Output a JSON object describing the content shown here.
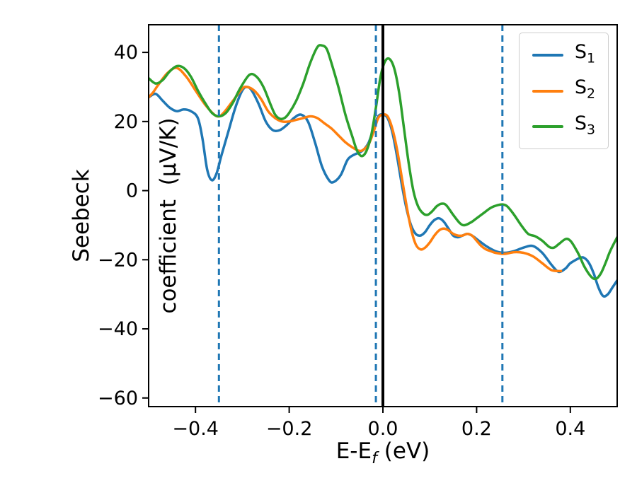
{
  "chart_data": {
    "type": "line",
    "title": "",
    "xlabel_base": "E-E",
    "xlabel_sub": "f",
    "xlabel_unit": " (eV)",
    "ylabel_line1": "Seebeck",
    "ylabel_line2": "coefficient  (μV/K)",
    "xlim": [
      -0.5,
      0.5
    ],
    "ylim": [
      -62.5,
      48
    ],
    "x_ticks": [
      -0.4,
      -0.2,
      0.0,
      0.2,
      0.4
    ],
    "x_tick_labels": [
      "−0.4",
      "−0.2",
      "0.0",
      "0.2",
      "0.4"
    ],
    "y_ticks": [
      -60,
      -40,
      -20,
      0,
      20,
      40
    ],
    "y_tick_labels": [
      "−60",
      "−40",
      "−20",
      "0",
      "20",
      "40"
    ],
    "grid": false,
    "legend_position": "upper right",
    "vlines_dashed": {
      "color": "#1f77b4",
      "x": [
        -0.35,
        -0.015,
        0.255
      ]
    },
    "vline_solid": {
      "color": "#000000",
      "x": 0.0
    },
    "series": [
      {
        "name": "S1",
        "color": "#1f77b4",
        "points": [
          [
            -0.5,
            27
          ],
          [
            -0.485,
            28
          ],
          [
            -0.47,
            26
          ],
          [
            -0.455,
            24
          ],
          [
            -0.44,
            23
          ],
          [
            -0.425,
            23.5
          ],
          [
            -0.41,
            23
          ],
          [
            -0.395,
            21
          ],
          [
            -0.385,
            15
          ],
          [
            -0.375,
            6
          ],
          [
            -0.365,
            3
          ],
          [
            -0.355,
            5
          ],
          [
            -0.345,
            10
          ],
          [
            -0.33,
            17
          ],
          [
            -0.315,
            24
          ],
          [
            -0.3,
            29
          ],
          [
            -0.29,
            30
          ],
          [
            -0.28,
            29
          ],
          [
            -0.265,
            25
          ],
          [
            -0.25,
            20
          ],
          [
            -0.235,
            17.5
          ],
          [
            -0.22,
            17.5
          ],
          [
            -0.205,
            19
          ],
          [
            -0.19,
            21
          ],
          [
            -0.175,
            22
          ],
          [
            -0.16,
            20
          ],
          [
            -0.145,
            14
          ],
          [
            -0.13,
            7
          ],
          [
            -0.115,
            3
          ],
          [
            -0.105,
            2.5
          ],
          [
            -0.09,
            4.5
          ],
          [
            -0.075,
            9
          ],
          [
            -0.06,
            10.5
          ],
          [
            -0.05,
            11
          ],
          [
            -0.04,
            12
          ],
          [
            -0.03,
            14
          ],
          [
            -0.02,
            18
          ],
          [
            -0.01,
            21.5
          ],
          [
            0,
            22
          ],
          [
            0.01,
            21
          ],
          [
            0.02,
            17
          ],
          [
            0.03,
            10
          ],
          [
            0.04,
            2
          ],
          [
            0.05,
            -5
          ],
          [
            0.06,
            -10
          ],
          [
            0.07,
            -12.5
          ],
          [
            0.08,
            -13
          ],
          [
            0.09,
            -12
          ],
          [
            0.1,
            -10
          ],
          [
            0.11,
            -8.5
          ],
          [
            0.12,
            -8
          ],
          [
            0.13,
            -9
          ],
          [
            0.14,
            -11
          ],
          [
            0.15,
            -13
          ],
          [
            0.16,
            -13.5
          ],
          [
            0.17,
            -13
          ],
          [
            0.18,
            -12.5
          ],
          [
            0.19,
            -13
          ],
          [
            0.2,
            -14
          ],
          [
            0.22,
            -16
          ],
          [
            0.24,
            -17.5
          ],
          [
            0.26,
            -18
          ],
          [
            0.28,
            -17.5
          ],
          [
            0.3,
            -16.5
          ],
          [
            0.32,
            -16
          ],
          [
            0.34,
            -18
          ],
          [
            0.36,
            -21.5
          ],
          [
            0.375,
            -23.5
          ],
          [
            0.39,
            -22.5
          ],
          [
            0.4,
            -21
          ],
          [
            0.42,
            -19.5
          ],
          [
            0.43,
            -19.5
          ],
          [
            0.44,
            -21
          ],
          [
            0.45,
            -24
          ],
          [
            0.46,
            -28
          ],
          [
            0.47,
            -30.5
          ],
          [
            0.48,
            -30
          ],
          [
            0.49,
            -28
          ],
          [
            0.5,
            -26
          ]
        ]
      },
      {
        "name": "S2",
        "color": "#ff7f0e",
        "points": [
          [
            -0.5,
            27
          ],
          [
            -0.49,
            28.5
          ],
          [
            -0.48,
            30.5
          ],
          [
            -0.46,
            34
          ],
          [
            -0.44,
            35.5
          ],
          [
            -0.42,
            33
          ],
          [
            -0.4,
            29
          ],
          [
            -0.38,
            25
          ],
          [
            -0.36,
            22
          ],
          [
            -0.35,
            21.5
          ],
          [
            -0.34,
            22.5
          ],
          [
            -0.32,
            26
          ],
          [
            -0.3,
            29.5
          ],
          [
            -0.29,
            30
          ],
          [
            -0.275,
            29
          ],
          [
            -0.26,
            26.5
          ],
          [
            -0.245,
            23
          ],
          [
            -0.23,
            21
          ],
          [
            -0.215,
            20
          ],
          [
            -0.2,
            20
          ],
          [
            -0.185,
            20.5
          ],
          [
            -0.17,
            21
          ],
          [
            -0.155,
            21.5
          ],
          [
            -0.14,
            21
          ],
          [
            -0.125,
            19.5
          ],
          [
            -0.11,
            18
          ],
          [
            -0.095,
            16
          ],
          [
            -0.08,
            14
          ],
          [
            -0.065,
            12.5
          ],
          [
            -0.05,
            11.5
          ],
          [
            -0.04,
            12
          ],
          [
            -0.03,
            13.5
          ],
          [
            -0.02,
            17
          ],
          [
            -0.01,
            21
          ],
          [
            0,
            22
          ],
          [
            0.01,
            21.5
          ],
          [
            0.02,
            18
          ],
          [
            0.03,
            12
          ],
          [
            0.04,
            4
          ],
          [
            0.05,
            -4
          ],
          [
            0.06,
            -11
          ],
          [
            0.07,
            -15.5
          ],
          [
            0.08,
            -17
          ],
          [
            0.09,
            -16.5
          ],
          [
            0.1,
            -15
          ],
          [
            0.11,
            -13
          ],
          [
            0.12,
            -11.5
          ],
          [
            0.13,
            -11
          ],
          [
            0.14,
            -11.5
          ],
          [
            0.15,
            -12.5
          ],
          [
            0.16,
            -13
          ],
          [
            0.17,
            -13
          ],
          [
            0.18,
            -12.5
          ],
          [
            0.19,
            -13
          ],
          [
            0.2,
            -14.5
          ],
          [
            0.21,
            -16
          ],
          [
            0.22,
            -17
          ],
          [
            0.23,
            -17.5
          ],
          [
            0.24,
            -18
          ],
          [
            0.26,
            -18.3
          ],
          [
            0.28,
            -17.8
          ],
          [
            0.3,
            -18
          ],
          [
            0.32,
            -19
          ],
          [
            0.34,
            -21
          ],
          [
            0.36,
            -23
          ],
          [
            0.38,
            -23.3
          ]
        ]
      },
      {
        "name": "S3",
        "color": "#2ca02c",
        "points": [
          [
            -0.5,
            32.5
          ],
          [
            -0.485,
            31
          ],
          [
            -0.47,
            32
          ],
          [
            -0.455,
            34.5
          ],
          [
            -0.44,
            36
          ],
          [
            -0.425,
            35.5
          ],
          [
            -0.41,
            33
          ],
          [
            -0.395,
            29
          ],
          [
            -0.38,
            25.5
          ],
          [
            -0.365,
            22.5
          ],
          [
            -0.35,
            21.5
          ],
          [
            -0.335,
            22.5
          ],
          [
            -0.32,
            25.5
          ],
          [
            -0.305,
            29.5
          ],
          [
            -0.285,
            33.5
          ],
          [
            -0.27,
            33
          ],
          [
            -0.255,
            30
          ],
          [
            -0.24,
            25
          ],
          [
            -0.23,
            22
          ],
          [
            -0.22,
            20.8
          ],
          [
            -0.21,
            21
          ],
          [
            -0.2,
            22.5
          ],
          [
            -0.185,
            26
          ],
          [
            -0.17,
            31
          ],
          [
            -0.155,
            37
          ],
          [
            -0.14,
            41.5
          ],
          [
            -0.13,
            42
          ],
          [
            -0.12,
            41
          ],
          [
            -0.11,
            37
          ],
          [
            -0.095,
            30
          ],
          [
            -0.08,
            22
          ],
          [
            -0.065,
            15.5
          ],
          [
            -0.055,
            11.5
          ],
          [
            -0.045,
            10
          ],
          [
            -0.035,
            11.5
          ],
          [
            -0.025,
            16
          ],
          [
            -0.015,
            24
          ],
          [
            -0.005,
            33
          ],
          [
            0.005,
            37.5
          ],
          [
            0.015,
            38
          ],
          [
            0.025,
            35
          ],
          [
            0.035,
            28
          ],
          [
            0.045,
            18
          ],
          [
            0.055,
            8
          ],
          [
            0.065,
            0
          ],
          [
            0.075,
            -4.5
          ],
          [
            0.085,
            -6.5
          ],
          [
            0.095,
            -7
          ],
          [
            0.105,
            -6
          ],
          [
            0.115,
            -4.5
          ],
          [
            0.125,
            -3.8
          ],
          [
            0.135,
            -4.2
          ],
          [
            0.15,
            -7
          ],
          [
            0.165,
            -9.5
          ],
          [
            0.175,
            -10
          ],
          [
            0.19,
            -9
          ],
          [
            0.2,
            -8
          ],
          [
            0.215,
            -6.5
          ],
          [
            0.23,
            -5
          ],
          [
            0.245,
            -4.2
          ],
          [
            0.255,
            -4
          ],
          [
            0.265,
            -4.5
          ],
          [
            0.28,
            -7
          ],
          [
            0.295,
            -10
          ],
          [
            0.31,
            -12.5
          ],
          [
            0.325,
            -13.2
          ],
          [
            0.34,
            -14.5
          ],
          [
            0.355,
            -16.3
          ],
          [
            0.365,
            -16.5
          ],
          [
            0.375,
            -15.5
          ],
          [
            0.39,
            -14
          ],
          [
            0.4,
            -14.5
          ],
          [
            0.41,
            -16.5
          ],
          [
            0.42,
            -19
          ],
          [
            0.43,
            -22
          ],
          [
            0.445,
            -25
          ],
          [
            0.455,
            -25.5
          ],
          [
            0.465,
            -24
          ],
          [
            0.475,
            -21
          ],
          [
            0.485,
            -17.5
          ],
          [
            0.5,
            -13.5
          ]
        ]
      }
    ]
  }
}
